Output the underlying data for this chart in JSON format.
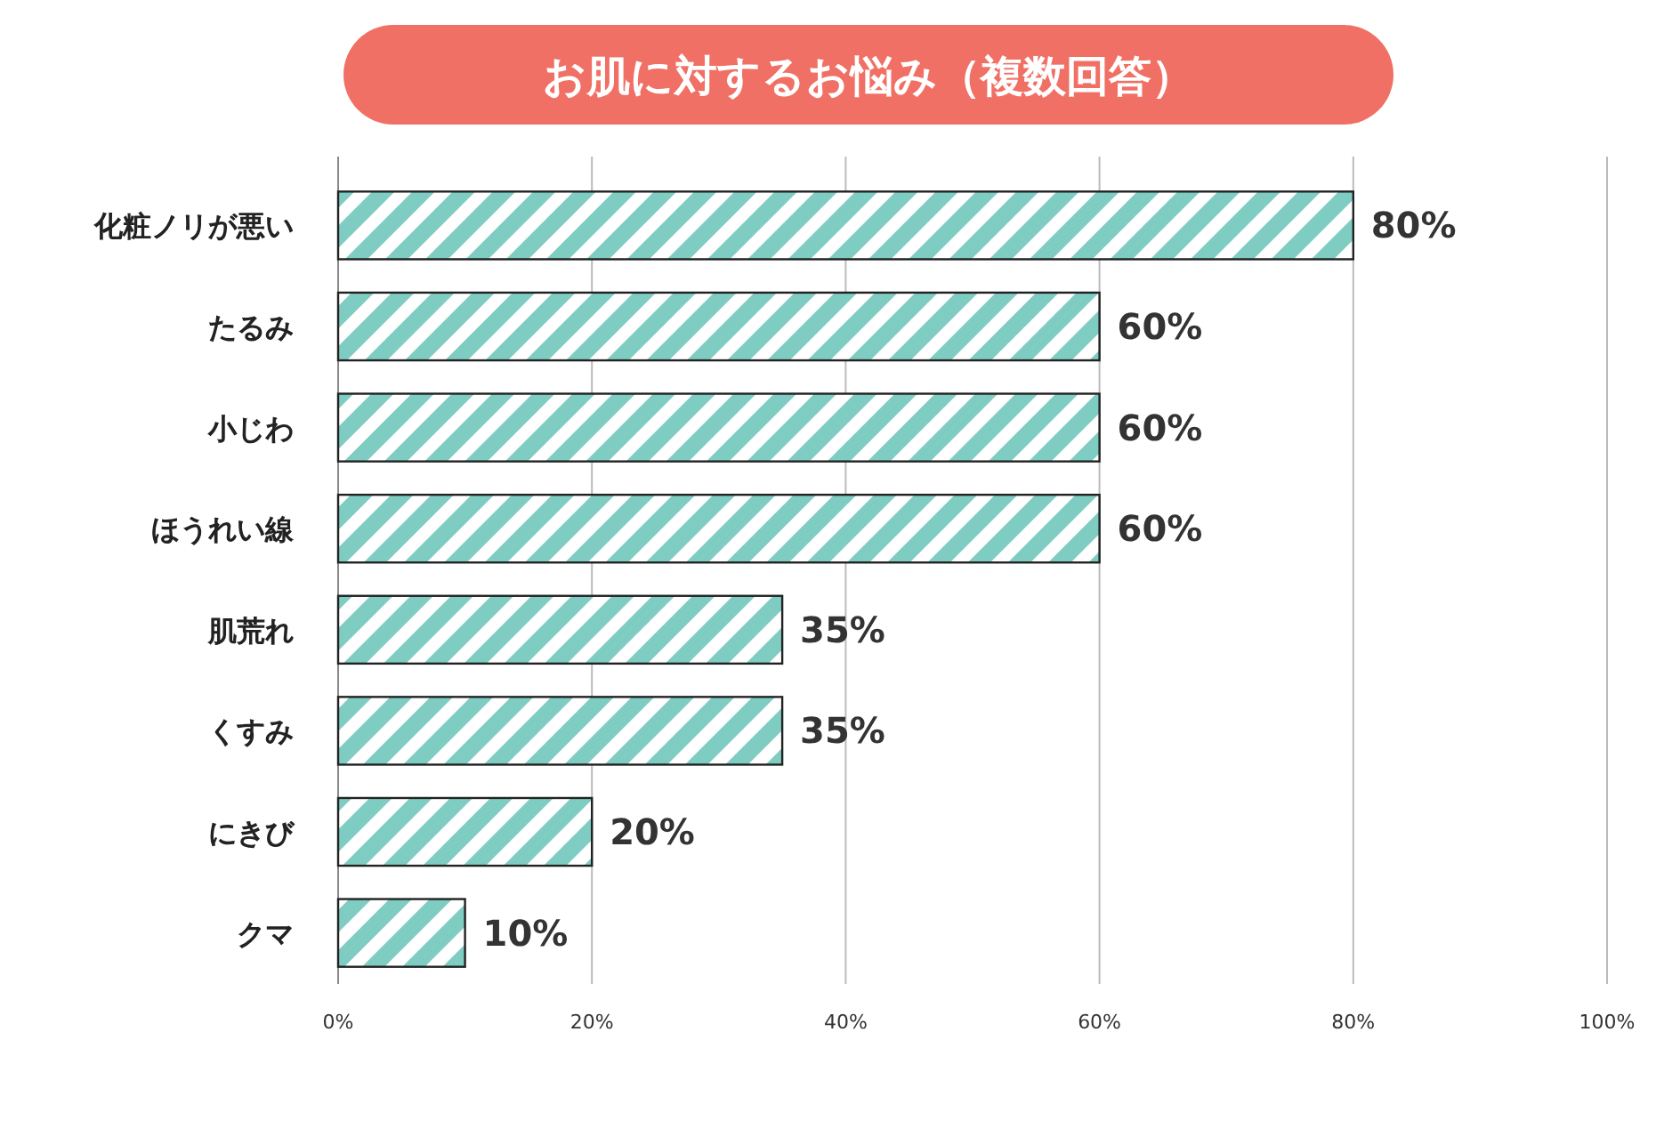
{
  "chart_data": {
    "type": "bar",
    "orientation": "horizontal",
    "title": "お肌に対するお悩み（複数回答）",
    "categories": [
      "化粧ノリが悪い",
      "たるみ",
      "小じわ",
      "ほうれい線",
      "肌荒れ",
      "くすみ",
      "にきび",
      "クマ"
    ],
    "values": [
      80,
      60,
      60,
      60,
      35,
      35,
      20,
      10
    ],
    "value_labels": [
      "80%",
      "60%",
      "60%",
      "60%",
      "35%",
      "35%",
      "20%",
      "10%"
    ],
    "color": "#7fcdc2",
    "xlim": [
      0,
      100
    ],
    "xticks": [
      {
        "value": 0,
        "label": "0%"
      },
      {
        "value": 20,
        "label": "20%"
      },
      {
        "value": 40,
        "label": "40%"
      },
      {
        "value": 60,
        "label": "60%"
      },
      {
        "value": 80,
        "label": "80%"
      },
      {
        "value": 100,
        "label": "100%"
      }
    ],
    "grid": "x"
  }
}
